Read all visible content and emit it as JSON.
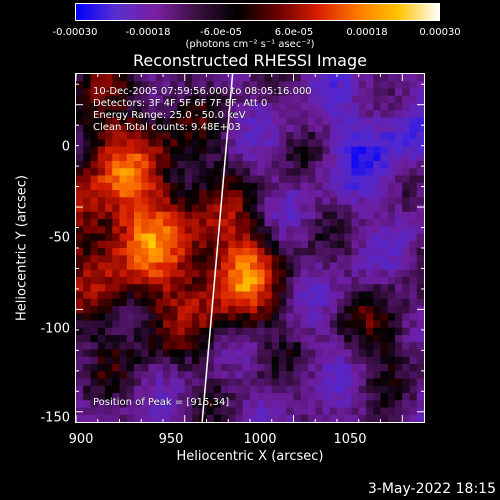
{
  "colorbar": {
    "ticks": [
      "-0.00030",
      "-0.00018",
      "-6.0e-05",
      "6.0e-05",
      "0.00018",
      "0.00030"
    ],
    "units": "(photons cm⁻² s⁻¹ asec⁻²)",
    "colors": [
      "#0000ff",
      "#5a2fcf",
      "#7a1fa0",
      "#3a1040",
      "#000000",
      "#6a0000",
      "#d81e00",
      "#ff7a00",
      "#ffc400",
      "#ffffff"
    ]
  },
  "chart_data": {
    "type": "heatmap",
    "title": "Reconstructed RHESSI Image",
    "xlabel": "Heliocentric X (arcsec)",
    "ylabel": "Heliocentric Y (arcsec)",
    "xlim": [
      900,
      1060
    ],
    "ylim": [
      -155,
      15
    ],
    "xticks": [
      "900",
      "950",
      "1000",
      "1050"
    ],
    "yticks": [
      "0",
      "-50",
      "-100",
      "-150"
    ],
    "color_range": [
      -0.0003,
      0.0003
    ],
    "peak_position": [
      915,
      34
    ],
    "limb_line": [
      [
        972,
        15
      ],
      [
        958,
        -155
      ]
    ]
  },
  "annotations": {
    "time_range": "10-Dec-2005 07:59:56.000 to 08:05:16.000",
    "detectors": "Detectors: 3F 4F 5F 6F 7F 8F, Att 0",
    "energy": "Energy Range: 25.0 - 50.0 keV",
    "clean": "Clean     Total counts: 9.48E+03",
    "peak": "Position of Peak = [915,34]"
  },
  "footer_date": "3-May-2022 18:15"
}
